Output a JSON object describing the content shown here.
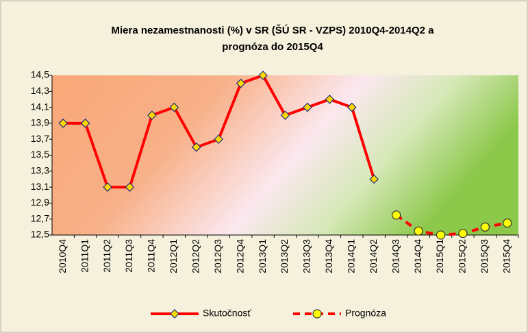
{
  "chart_data": {
    "type": "line",
    "title": [
      "Miera nezamestnanosti (%) v SR (ŠÚ SR - VZPS) 2010Q4-2014Q2 a",
      "prognóza do 2015Q4"
    ],
    "categories": [
      "2010Q4",
      "2011Q1",
      "2011Q2",
      "2011Q3",
      "2011Q4",
      "2012Q1",
      "2012Q2",
      "2012Q3",
      "2012Q4",
      "2013Q1",
      "2013Q2",
      "2013Q3",
      "2013Q4",
      "2014Q1",
      "2014Q2",
      "2014Q3",
      "2014Q4",
      "2015Q1",
      "2015Q2",
      "2015Q3",
      "2015Q4"
    ],
    "series": [
      {
        "name": "Skutočnosť",
        "color": "#ff0000",
        "marker_color": "#ffd700",
        "marker_stroke": "#1f2f7a",
        "marker": "diamond",
        "dashed": false,
        "values": [
          13.9,
          13.9,
          13.1,
          13.1,
          14.0,
          14.1,
          13.6,
          13.7,
          14.4,
          14.5,
          14.0,
          14.1,
          14.2,
          14.1,
          13.2,
          null,
          null,
          null,
          null,
          null,
          null
        ]
      },
      {
        "name": "Prognóza",
        "color": "#ff0000",
        "marker_color": "#ffff00",
        "marker_stroke": "#333333",
        "marker": "circle",
        "dashed": true,
        "values": [
          null,
          null,
          null,
          null,
          null,
          null,
          null,
          null,
          null,
          null,
          null,
          null,
          null,
          null,
          null,
          12.75,
          12.55,
          12.5,
          12.52,
          12.6,
          12.65
        ]
      }
    ],
    "ylim": [
      12.5,
      14.5
    ],
    "yticks": [
      {
        "value": 12.5,
        "label": "12,5"
      },
      {
        "value": 12.7,
        "label": "12,7"
      },
      {
        "value": 12.9,
        "label": "12,9"
      },
      {
        "value": 13.1,
        "label": "13,1"
      },
      {
        "value": 13.3,
        "label": "13,3"
      },
      {
        "value": 13.5,
        "label": "13,5"
      },
      {
        "value": 13.7,
        "label": "13,7"
      },
      {
        "value": 13.9,
        "label": "13,9"
      },
      {
        "value": 14.1,
        "label": "14,1"
      },
      {
        "value": 14.3,
        "label": "14,3"
      },
      {
        "value": 14.5,
        "label": "14,5"
      }
    ],
    "grid": false,
    "legend": "bottom"
  }
}
